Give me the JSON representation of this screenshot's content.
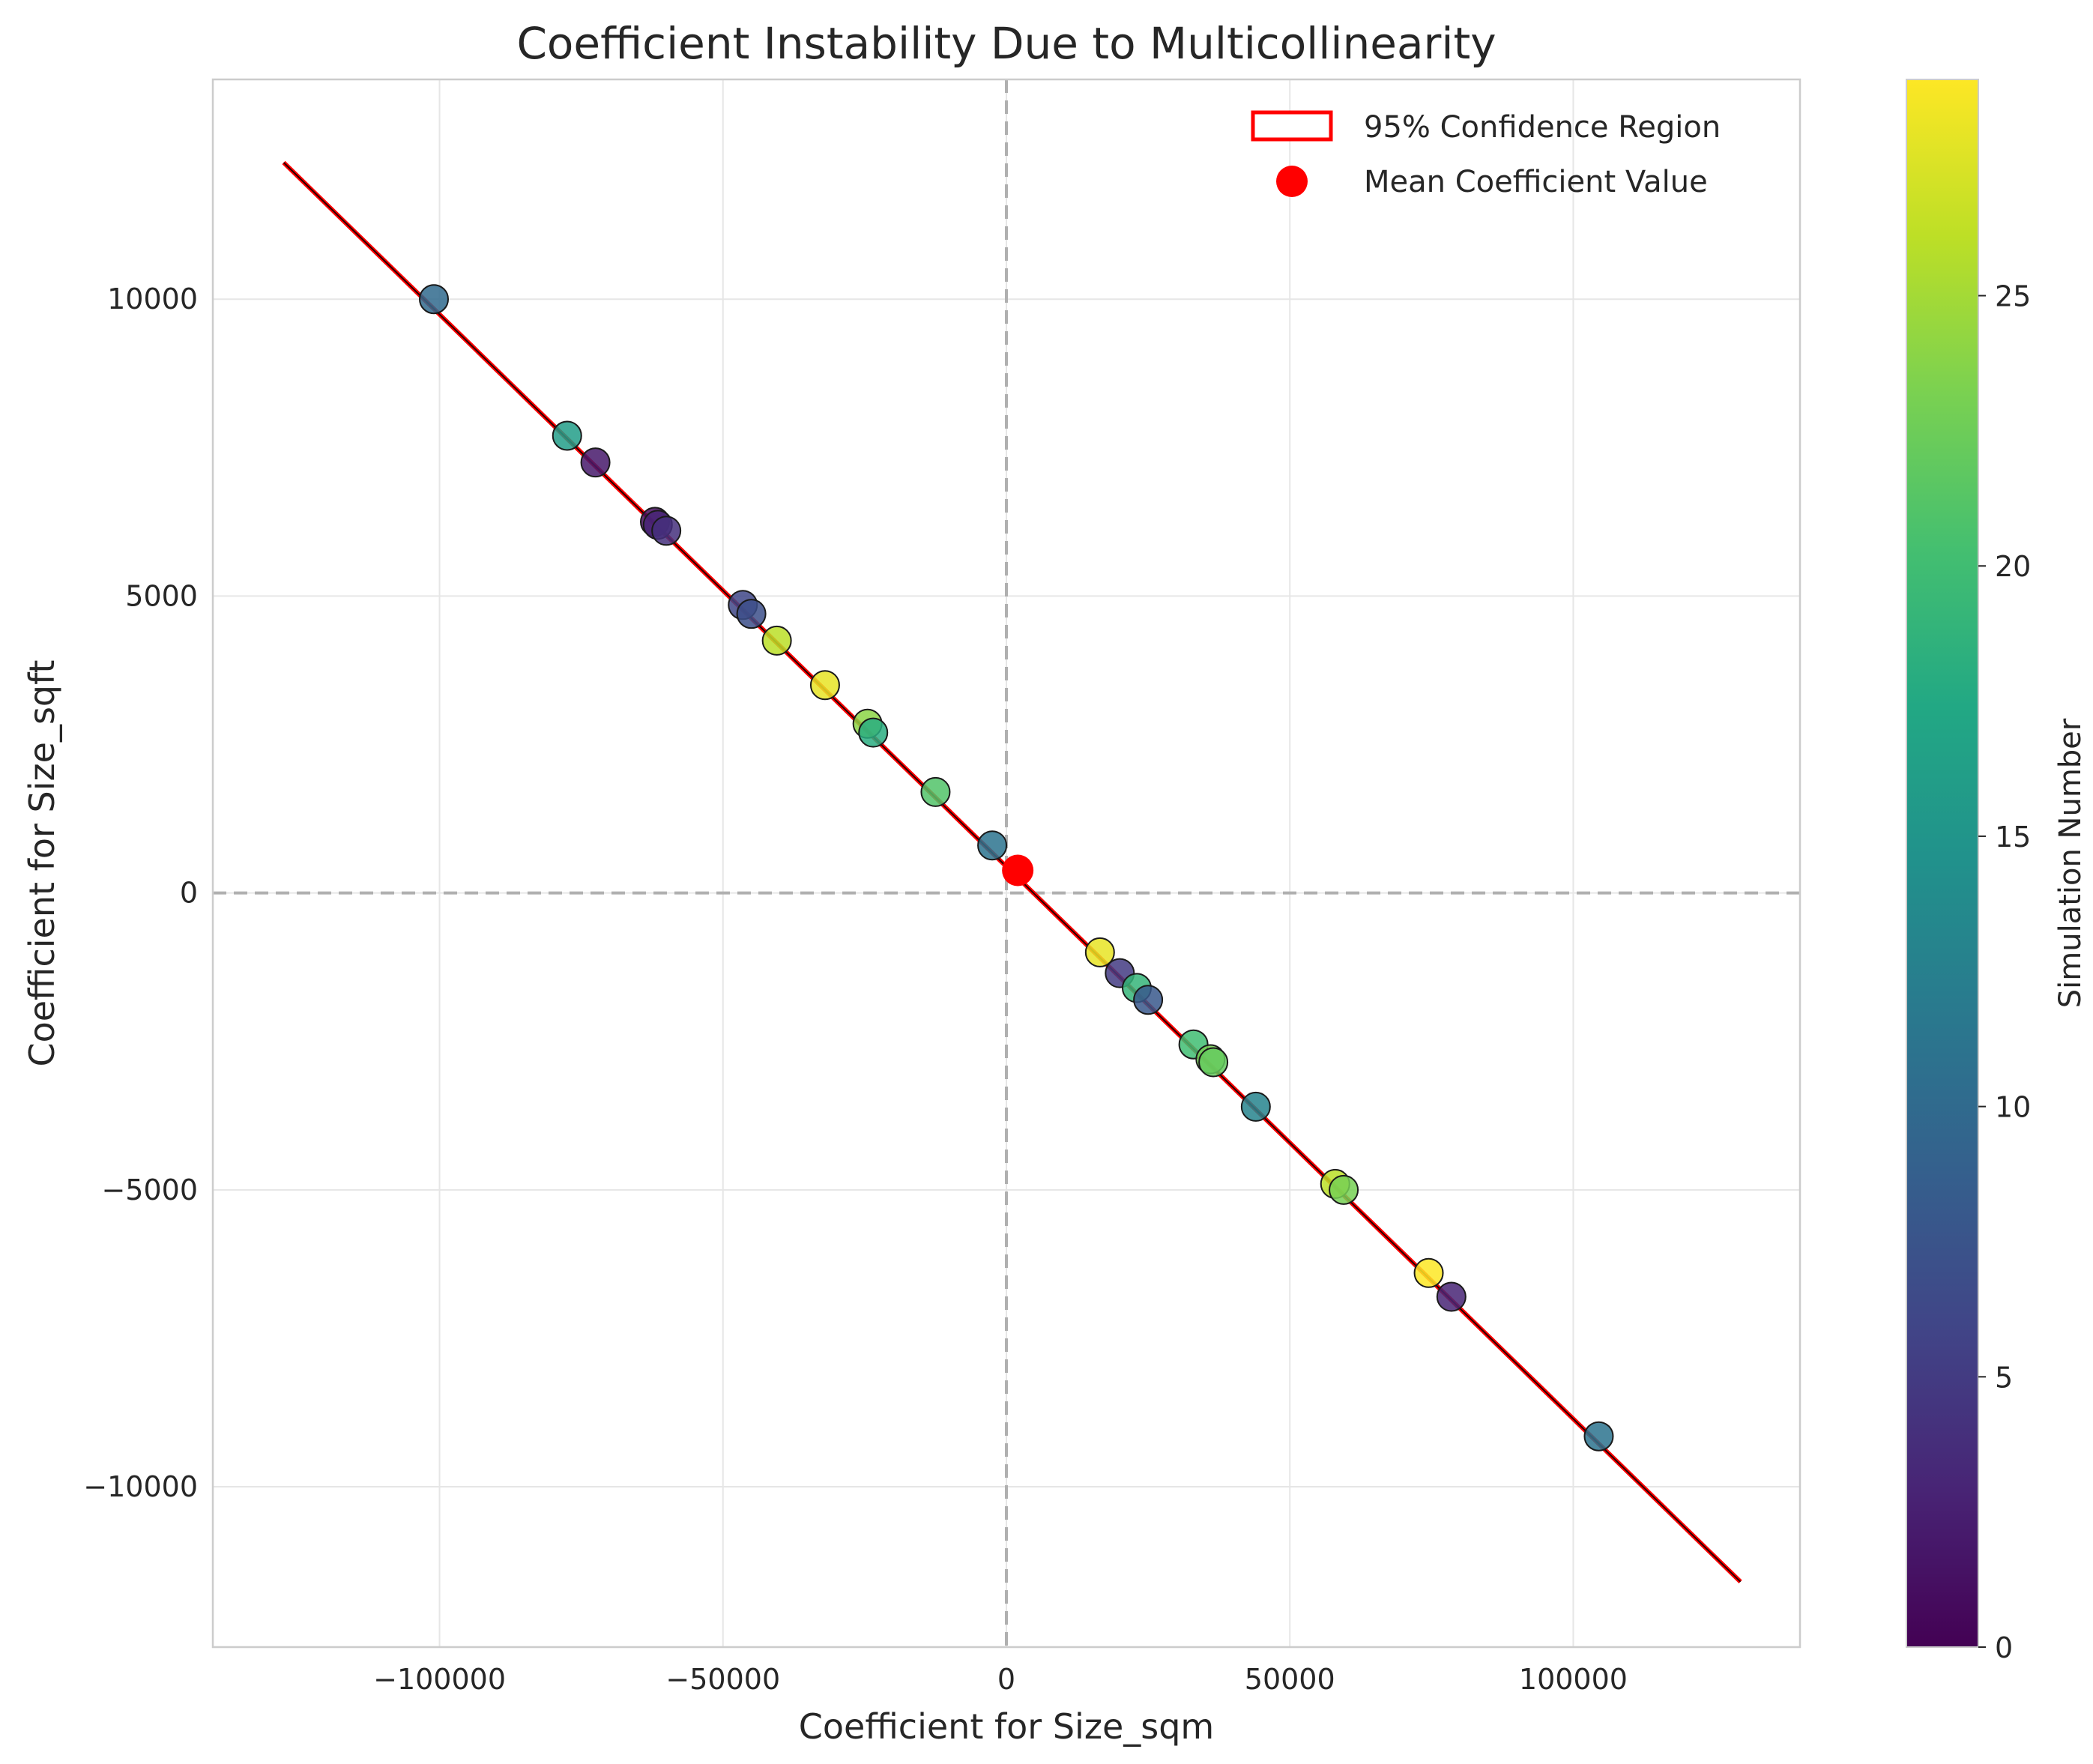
{
  "chart_data": {
    "type": "scatter",
    "title": "Coefficient Instability Due to Multicollinearity",
    "xlabel": "Coefficient for Size_sqm",
    "ylabel": "Coefficient for Size_sqft",
    "xlim": [
      -140000,
      140000
    ],
    "ylim": [
      -12700,
      13700
    ],
    "xticks": [
      -100000,
      -50000,
      0,
      50000,
      100000
    ],
    "xtick_labels": [
      "−100000",
      "−50000",
      "0",
      "50000",
      "100000"
    ],
    "yticks": [
      -10000,
      -5000,
      0,
      5000,
      10000
    ],
    "ytick_labels": [
      "−10000",
      "−5000",
      "0",
      "5000",
      "10000"
    ],
    "grid": true,
    "reference_lines": {
      "x": 0,
      "y": 0,
      "style": "dashed",
      "color": "#b0b0b0"
    },
    "confidence_region": {
      "label": "95% Confidence Region",
      "color": "#ff0000",
      "segment": {
        "x": [
          -127500,
          129500
        ],
        "y": [
          12300,
          -11600
        ]
      }
    },
    "mean_point": {
      "label": "Mean Coefficient Value",
      "x": 2000,
      "y": 380,
      "color": "#ff0000"
    },
    "legend_position": "top-right",
    "colorbar": {
      "label": "Simulation Number",
      "colormap": "viridis",
      "range": [
        0,
        29
      ],
      "ticks": [
        0,
        5,
        10,
        15,
        20,
        25
      ],
      "tick_labels": [
        "0",
        "5",
        "10",
        "15",
        "20",
        "25"
      ]
    },
    "points": [
      {
        "x": -101000,
        "y": 10000,
        "sim": 10
      },
      {
        "x": -77500,
        "y": 7700,
        "sim": 16
      },
      {
        "x": -72500,
        "y": 7250,
        "sim": 2
      },
      {
        "x": -62000,
        "y": 6250,
        "sim": 1
      },
      {
        "x": -61500,
        "y": 6200,
        "sim": 3
      },
      {
        "x": -60000,
        "y": 6100,
        "sim": 4
      },
      {
        "x": -46500,
        "y": 4850,
        "sim": 6
      },
      {
        "x": -45000,
        "y": 4700,
        "sim": 7
      },
      {
        "x": -40500,
        "y": 4250,
        "sim": 26
      },
      {
        "x": -32000,
        "y": 3500,
        "sim": 28
      },
      {
        "x": -24500,
        "y": 2850,
        "sim": 24
      },
      {
        "x": -23500,
        "y": 2700,
        "sim": 18
      },
      {
        "x": -12500,
        "y": 1700,
        "sim": 21
      },
      {
        "x": -2500,
        "y": 800,
        "sim": 11
      },
      {
        "x": 16500,
        "y": -1000,
        "sim": 28
      },
      {
        "x": 20000,
        "y": -1350,
        "sim": 5
      },
      {
        "x": 23000,
        "y": -1600,
        "sim": 19
      },
      {
        "x": 25000,
        "y": -1800,
        "sim": 8
      },
      {
        "x": 33000,
        "y": -2550,
        "sim": 20
      },
      {
        "x": 36000,
        "y": -2800,
        "sim": 23
      },
      {
        "x": 36500,
        "y": -2850,
        "sim": 22
      },
      {
        "x": 44000,
        "y": -3600,
        "sim": 13
      },
      {
        "x": 58000,
        "y": -4900,
        "sim": 26
      },
      {
        "x": 59500,
        "y": -5000,
        "sim": 23
      },
      {
        "x": 74500,
        "y": -6400,
        "sim": 29
      },
      {
        "x": 78500,
        "y": -6800,
        "sim": 3
      },
      {
        "x": 104500,
        "y": -9150,
        "sim": 11
      }
    ]
  }
}
